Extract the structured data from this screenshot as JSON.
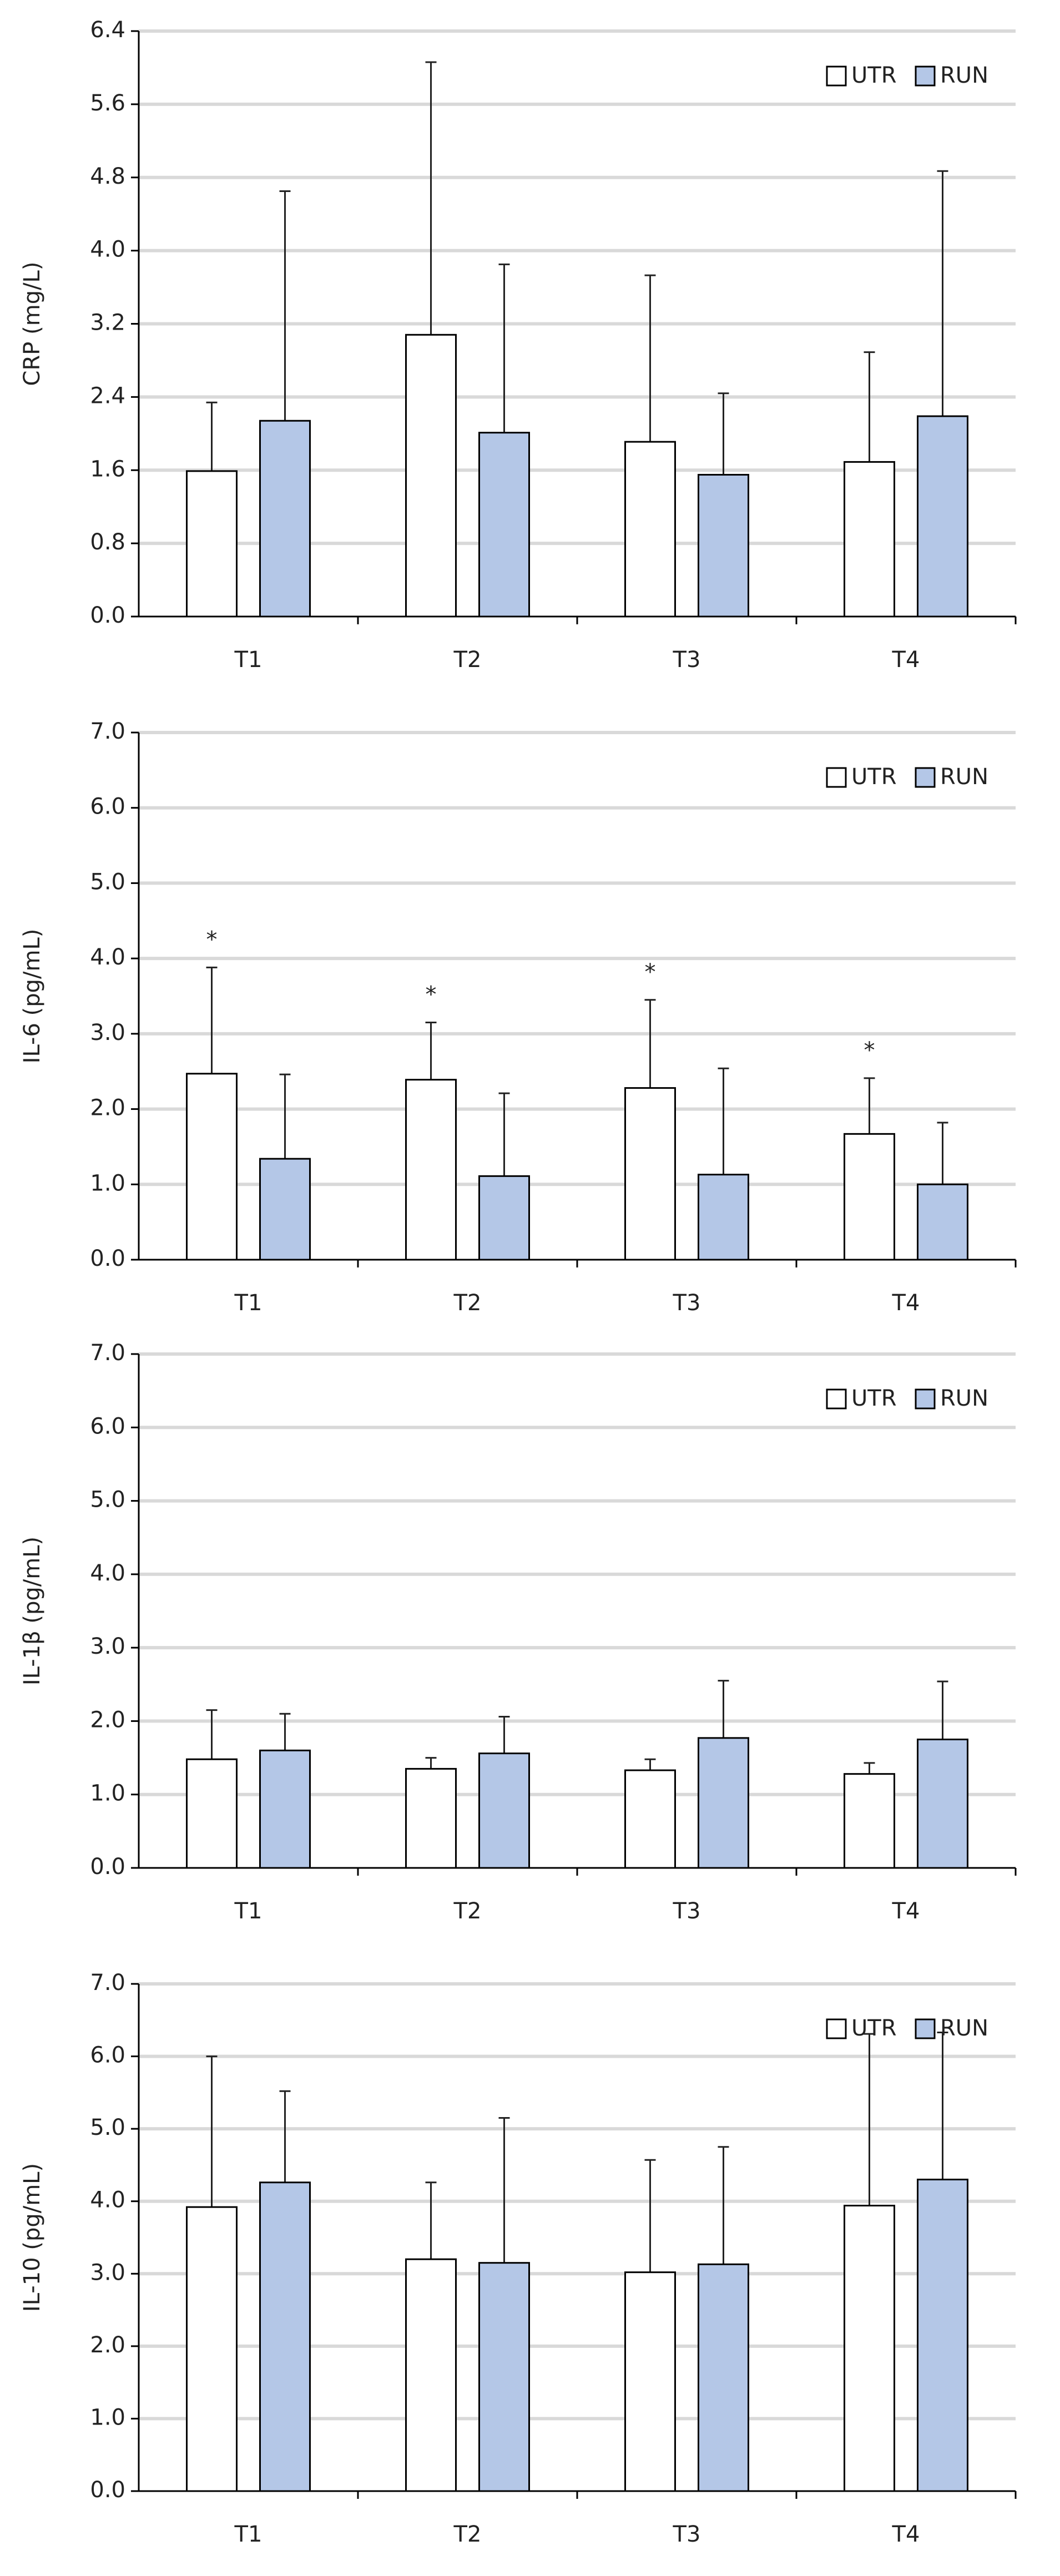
{
  "chart_data": [
    {
      "type": "bar",
      "y_label": "CRP (mg/L)",
      "categories": [
        "T1",
        "T2",
        "T3",
        "T4"
      ],
      "series": [
        {
          "name": "UTR",
          "color": "#ffffff",
          "values": [
            1.59,
            3.08,
            1.91,
            1.69
          ],
          "errors": [
            0.75,
            2.98,
            1.82,
            1.2
          ]
        },
        {
          "name": "RUN",
          "color": "#b4c7e7",
          "values": [
            2.14,
            2.01,
            1.55,
            2.19
          ],
          "errors": [
            2.51,
            1.84,
            0.89,
            2.68
          ]
        }
      ],
      "ylim": [
        0,
        6.4
      ],
      "yticks": [
        {
          "value": 0,
          "label": "0.0"
        },
        0.8,
        1.6,
        2.4,
        3.2,
        {
          "value": 4,
          "label": "4.0"
        },
        4.8,
        5.6,
        6.4
      ],
      "grid": true,
      "legend": "upper right"
    },
    {
      "type": "bar",
      "y_label": "IL-6 (pg/mL)",
      "categories": [
        "T1",
        "T2",
        "T3",
        "T4"
      ],
      "series": [
        {
          "name": "UTR",
          "color": "#ffffff",
          "values": [
            2.47,
            2.39,
            2.28,
            1.67
          ],
          "errors": [
            1.41,
            0.76,
            1.17,
            0.74
          ],
          "annotations": [
            "*",
            "*",
            "*",
            "*"
          ]
        },
        {
          "name": "RUN",
          "color": "#b4c7e7",
          "values": [
            1.34,
            1.11,
            1.13,
            1.0
          ],
          "errors": [
            1.12,
            1.1,
            1.41,
            0.82
          ]
        }
      ],
      "ylim": [
        0,
        7
      ],
      "yticks": [
        {
          "value": 0,
          "label": "0.0"
        },
        {
          "value": 1,
          "label": "1.0"
        },
        {
          "value": 2,
          "label": "2.0"
        },
        {
          "value": 3,
          "label": "3.0"
        },
        {
          "value": 4,
          "label": "4.0"
        },
        {
          "value": 5,
          "label": "5.0"
        },
        {
          "value": 6,
          "label": "6.0"
        },
        {
          "value": 7,
          "label": "7.0"
        }
      ],
      "grid": true,
      "legend": "upper right"
    },
    {
      "type": "bar",
      "y_label": "IL-1β (pg/mL)",
      "categories": [
        "T1",
        "T2",
        "T3",
        "T4"
      ],
      "series": [
        {
          "name": "UTR",
          "color": "#ffffff",
          "values": [
            1.48,
            1.35,
            1.33,
            1.28
          ],
          "errors": [
            0.67,
            0.15,
            0.15,
            0.15
          ]
        },
        {
          "name": "RUN",
          "color": "#b4c7e7",
          "values": [
            1.6,
            1.56,
            1.77,
            1.75
          ],
          "errors": [
            0.5,
            0.5,
            0.78,
            0.79
          ]
        }
      ],
      "ylim": [
        0,
        7
      ],
      "yticks": [
        {
          "value": 0,
          "label": "0.0"
        },
        {
          "value": 1,
          "label": "1.0"
        },
        {
          "value": 2,
          "label": "2.0"
        },
        {
          "value": 3,
          "label": "3.0"
        },
        {
          "value": 4,
          "label": "4.0"
        },
        {
          "value": 5,
          "label": "5.0"
        },
        {
          "value": 6,
          "label": "6.0"
        },
        {
          "value": 7,
          "label": "7.0"
        }
      ],
      "grid": true,
      "legend": "upper right"
    },
    {
      "type": "bar",
      "y_label": "IL-10 (pg/mL)",
      "categories": [
        "T1",
        "T2",
        "T3",
        "T4"
      ],
      "series": [
        {
          "name": "UTR",
          "color": "#ffffff",
          "values": [
            3.92,
            3.2,
            3.02,
            3.94
          ],
          "errors": [
            2.08,
            1.06,
            1.55,
            2.37
          ]
        },
        {
          "name": "RUN",
          "color": "#b4c7e7",
          "values": [
            4.26,
            3.15,
            3.13,
            4.3
          ],
          "errors": [
            1.26,
            2.0,
            1.62,
            2.03
          ]
        }
      ],
      "ylim": [
        0,
        7
      ],
      "yticks": [
        {
          "value": 0,
          "label": "0.0"
        },
        {
          "value": 1,
          "label": "1.0"
        },
        {
          "value": 2,
          "label": "2.0"
        },
        {
          "value": 3,
          "label": "3.0"
        },
        {
          "value": 4,
          "label": "4.0"
        },
        {
          "value": 5,
          "label": "5.0"
        },
        {
          "value": 6,
          "label": "6.0"
        },
        {
          "value": 7,
          "label": "7.0"
        }
      ],
      "grid": true,
      "legend": "upper right"
    }
  ]
}
